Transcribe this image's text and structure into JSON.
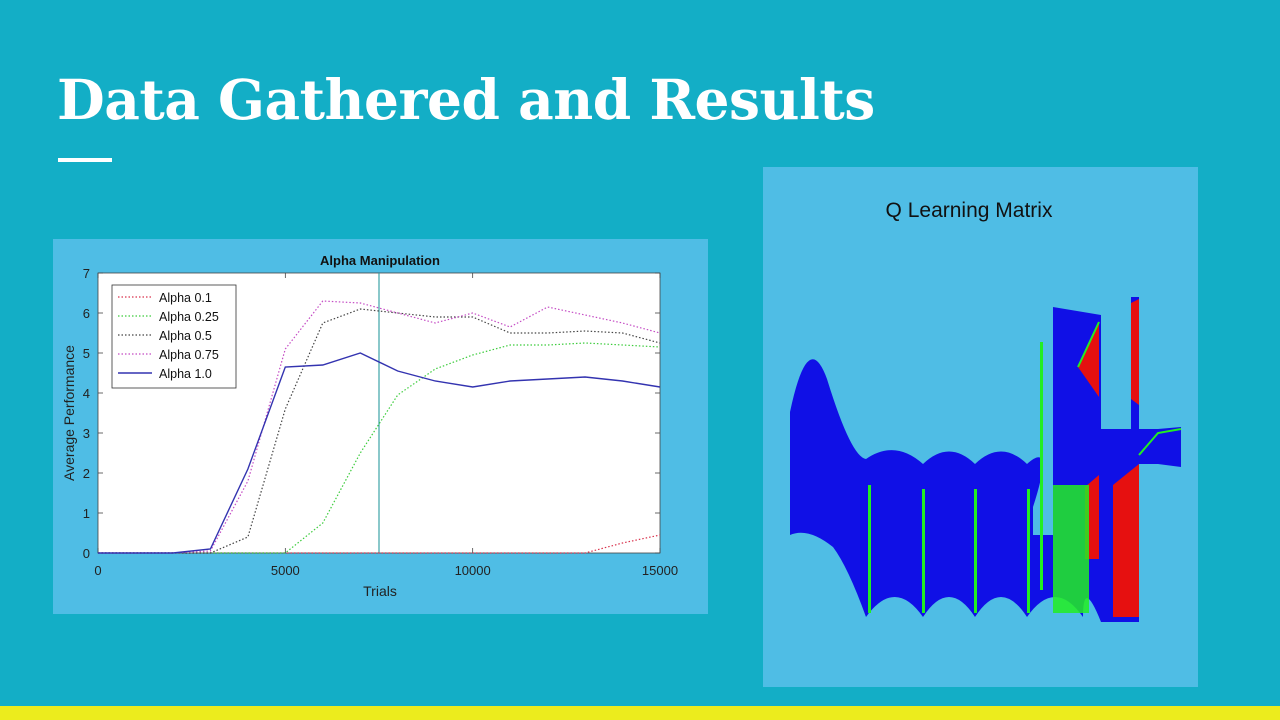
{
  "slide": {
    "title": "Data Gathered and Results",
    "colors": {
      "background": "#13aec6",
      "panel": "#4fbde5",
      "bottom_bar": "#ecec1d",
      "title_text": "#ffffff"
    }
  },
  "chart_data": [
    {
      "type": "line",
      "title": "Alpha Manipulation",
      "xlabel": "Trials",
      "ylabel": "Average Performance",
      "xlim": [
        0,
        15000
      ],
      "ylim": [
        0,
        7
      ],
      "xticks": [
        0,
        5000,
        10000,
        15000
      ],
      "xtick_labels": [
        "0",
        "5000",
        "10000",
        "15000"
      ],
      "yticks": [
        0,
        1,
        2,
        3,
        4,
        5,
        6,
        7
      ],
      "ytick_labels": [
        "0",
        "1",
        "2",
        "3",
        "4",
        "5",
        "6",
        "7"
      ],
      "grid": false,
      "legend_position": "top-left",
      "x": [
        0,
        1000,
        2000,
        3000,
        4000,
        5000,
        6000,
        7000,
        8000,
        9000,
        10000,
        11000,
        12000,
        13000,
        14000,
        15000
      ],
      "series": [
        {
          "name": "Alpha 0.1",
          "color": "#d9334d",
          "style": "dotted",
          "values": [
            0,
            0,
            0,
            0,
            0,
            0,
            0,
            0,
            0,
            0,
            0,
            0,
            0,
            0,
            0.25,
            0.45
          ]
        },
        {
          "name": "Alpha 0.25",
          "color": "#3ccc3c",
          "style": "dotted",
          "values": [
            0,
            0,
            0,
            0,
            0,
            0,
            0.75,
            2.5,
            3.95,
            4.6,
            4.95,
            5.2,
            5.2,
            5.25,
            5.2,
            5.15
          ]
        },
        {
          "name": "Alpha 0.5",
          "color": "#444444",
          "style": "dotted",
          "values": [
            0,
            0,
            0,
            0,
            0.4,
            3.6,
            5.75,
            6.1,
            6.0,
            5.9,
            5.9,
            5.5,
            5.5,
            5.55,
            5.5,
            5.25
          ]
        },
        {
          "name": "Alpha 0.75",
          "color": "#c44bc4",
          "style": "dotted",
          "values": [
            0,
            0,
            0,
            0.05,
            1.8,
            5.1,
            6.3,
            6.25,
            6.0,
            5.75,
            6.0,
            5.65,
            6.15,
            5.95,
            5.75,
            5.5
          ]
        },
        {
          "name": "Alpha 1.0",
          "color": "#3333b0",
          "style": "solid",
          "values": [
            0,
            0,
            0,
            0.1,
            2.1,
            4.65,
            4.7,
            5.0,
            4.55,
            4.3,
            4.15,
            4.3,
            4.35,
            4.4,
            4.3,
            4.15
          ]
        }
      ],
      "annotations": [
        {
          "type": "vertical-line",
          "x": 7500,
          "color": "#2a9aa0"
        }
      ]
    },
    {
      "type": "heatmap",
      "title": "Q Learning Matrix",
      "color_scheme": [
        "#1010e6",
        "#e61010",
        "#22ee22"
      ]
    }
  ]
}
